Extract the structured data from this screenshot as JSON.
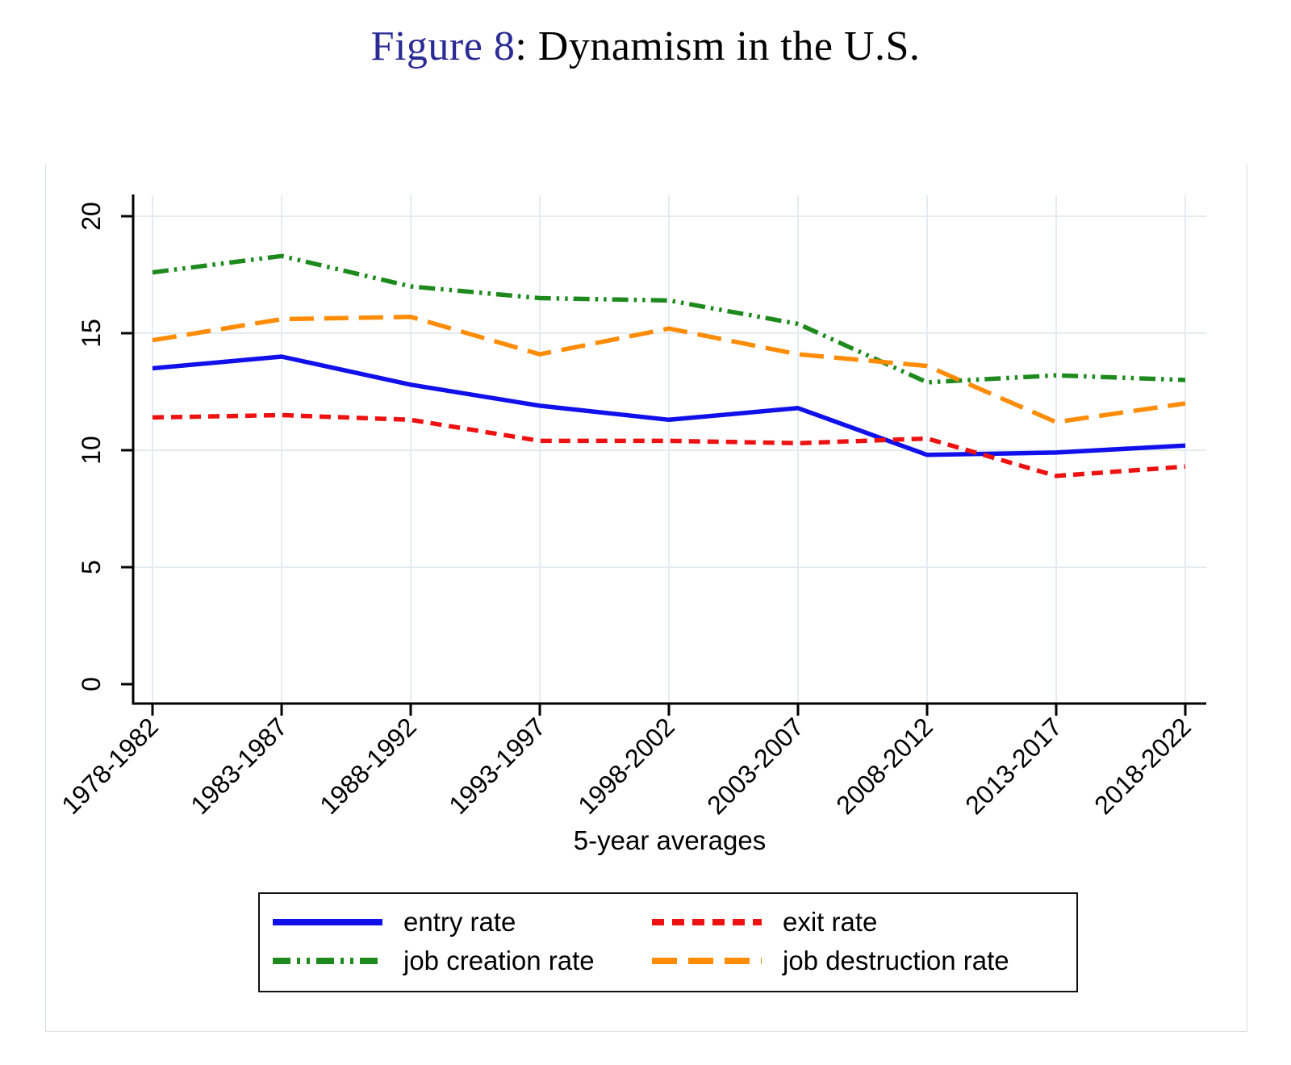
{
  "title": {
    "figure_label": "Figure 8",
    "text": ": Dynamism in the U.S."
  },
  "colors": {
    "title_accent": "#2b2b96",
    "axis": "#000000",
    "gridline": "#e4ecf2"
  },
  "chart_data": {
    "type": "line",
    "title": "Figure 8: Dynamism in the U.S.",
    "xlabel": "5-year averages",
    "ylabel": "",
    "categories": [
      "1978-1982",
      "1983-1987",
      "1988-1992",
      "1993-1997",
      "1998-2002",
      "2003-2007",
      "2008-2012",
      "2013-2017",
      "2018-2022"
    ],
    "series": [
      {
        "name": "entry rate",
        "color": "#1010eb",
        "dash": "solid",
        "values": [
          13.5,
          14.0,
          12.8,
          11.9,
          11.3,
          11.8,
          9.8,
          9.9,
          10.2
        ]
      },
      {
        "name": "exit rate",
        "color": "#ee1111",
        "dash": "short-dash",
        "values": [
          11.4,
          11.5,
          11.3,
          10.4,
          10.4,
          10.3,
          10.5,
          8.9,
          9.3
        ]
      },
      {
        "name": "job creation rate",
        "color": "#1e8a1e",
        "dash": "dash-dot-dot",
        "values": [
          17.6,
          18.3,
          17.0,
          16.5,
          16.4,
          15.4,
          12.9,
          13.2,
          13.0
        ]
      },
      {
        "name": "job destruction rate",
        "color": "#ff8c05",
        "dash": "long-dash",
        "values": [
          14.7,
          15.6,
          15.7,
          14.1,
          15.2,
          14.1,
          13.6,
          11.2,
          12.0
        ]
      }
    ],
    "ylim": [
      0,
      21
    ],
    "yticks": [
      0,
      5,
      10,
      15,
      20
    ],
    "grid": true,
    "legend_position": "bottom"
  }
}
